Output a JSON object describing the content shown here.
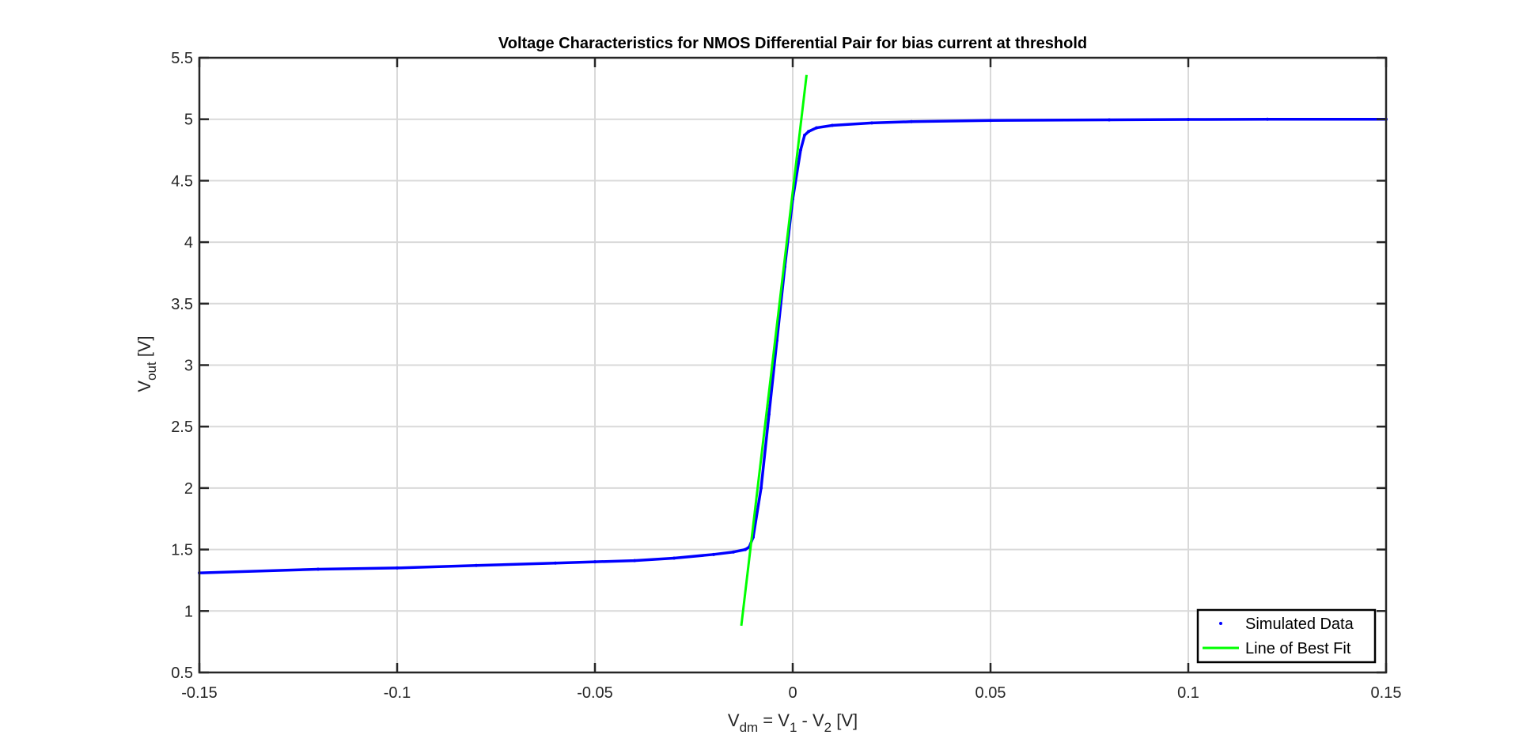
{
  "chart_data": {
    "type": "line",
    "title": "Voltage Characteristics for NMOS Differential Pair for bias current at threshold",
    "xlabel": {
      "main": "V",
      "sub": "dm",
      "rest1": " = V",
      "sub1": "1",
      "rest2": " - V",
      "sub2": "2",
      "tail": " [V]"
    },
    "ylabel": {
      "main": "V",
      "sub": "out",
      "tail": " [V]"
    },
    "xlim": [
      -0.15,
      0.15
    ],
    "ylim": [
      0.5,
      5.5
    ],
    "xticks": [
      -0.15,
      -0.1,
      -0.05,
      0,
      0.05,
      0.1,
      0.15
    ],
    "xtick_labels": [
      "-0.15",
      "-0.1",
      "-0.05",
      "0",
      "0.05",
      "0.1",
      "0.15"
    ],
    "yticks": [
      0.5,
      1,
      1.5,
      2,
      2.5,
      3,
      3.5,
      4,
      4.5,
      5,
      5.5
    ],
    "ytick_labels": [
      "0.5",
      "1",
      "1.5",
      "2",
      "2.5",
      "3",
      "3.5",
      "4",
      "4.5",
      "5",
      "5.5"
    ],
    "grid": true,
    "legend_position": "bottom-right",
    "series": [
      {
        "name": "Simulated Data",
        "style": "dots",
        "color": "#0000ff",
        "x": [
          -0.15,
          -0.12,
          -0.1,
          -0.08,
          -0.06,
          -0.05,
          -0.04,
          -0.03,
          -0.02,
          -0.015,
          -0.012,
          -0.011,
          -0.01,
          -0.008,
          -0.006,
          -0.004,
          -0.002,
          0,
          0.002,
          0.003,
          0.004,
          0.006,
          0.01,
          0.02,
          0.03,
          0.05,
          0.08,
          0.1,
          0.12,
          0.15
        ],
        "y": [
          1.31,
          1.34,
          1.35,
          1.37,
          1.39,
          1.4,
          1.41,
          1.43,
          1.46,
          1.48,
          1.5,
          1.52,
          1.6,
          2.0,
          2.6,
          3.2,
          3.8,
          4.35,
          4.75,
          4.87,
          4.9,
          4.93,
          4.95,
          4.97,
          4.98,
          4.99,
          4.995,
          4.998,
          5.0,
          5.0
        ]
      },
      {
        "name": "Line of Best Fit",
        "style": "line",
        "color": "#00ff00",
        "x": [
          -0.013,
          0.0035
        ],
        "y": [
          0.88,
          5.36
        ]
      }
    ]
  }
}
